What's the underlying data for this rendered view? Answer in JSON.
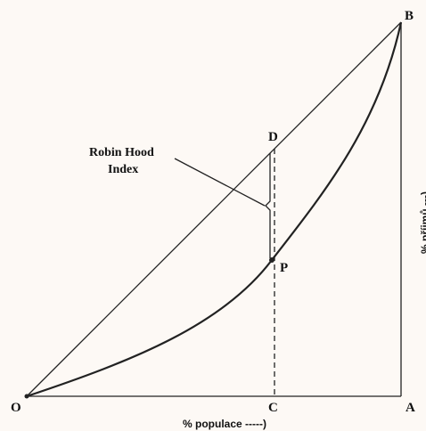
{
  "points": {
    "o": "O",
    "c": "C",
    "a": "A",
    "b": "B",
    "d": "D",
    "p": "P"
  },
  "annotation": {
    "line1": "Robin Hood",
    "line2": "Index"
  },
  "x_axis_label": "% populace -----)",
  "y_axis_label": "% příjmů ---)"
}
